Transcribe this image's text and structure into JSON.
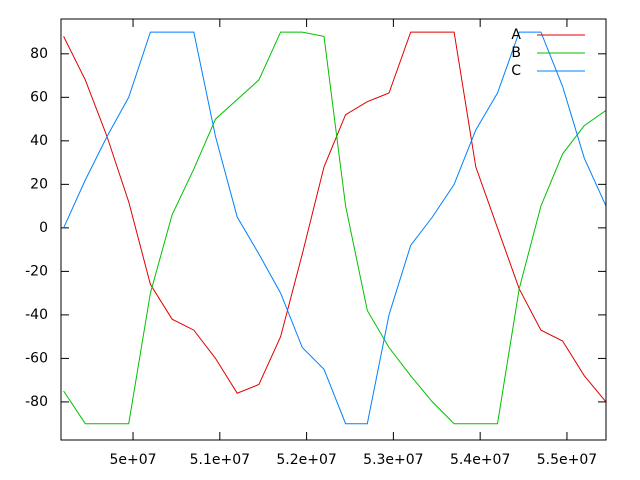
{
  "chart_data": {
    "type": "line",
    "x": [
      49200000,
      49450000,
      49700000,
      49950000,
      50200000,
      50450000,
      50700000,
      50950000,
      51200000,
      51450000,
      51700000,
      51950000,
      52200000,
      52450000,
      52700000,
      52950000,
      53200000,
      53450000,
      53700000,
      53950000,
      54200000,
      54450000,
      54700000,
      54950000,
      55200000,
      55450000
    ],
    "series": [
      {
        "name": "A",
        "color": "#e00000",
        "values": [
          88,
          68,
          42,
          12,
          -26,
          -42,
          -47,
          -60,
          -76,
          -72,
          -50,
          -12,
          28,
          52,
          58,
          62,
          90,
          90,
          90,
          28,
          0,
          -28,
          -47,
          -52,
          -68,
          -80
        ]
      },
      {
        "name": "B",
        "color": "#00c000",
        "values": [
          -75,
          -90,
          -90,
          -90,
          -30,
          6,
          27,
          50,
          59,
          68,
          90,
          90,
          88,
          10,
          -38,
          -55,
          -68,
          -80,
          -90,
          -90,
          -90,
          -28,
          10,
          34,
          47,
          54
        ]
      },
      {
        "name": "C",
        "color": "#0080ff",
        "values": [
          0,
          22,
          42,
          60,
          90,
          90,
          90,
          42,
          5,
          -12,
          -30,
          -55,
          -65,
          -90,
          -90,
          -40,
          -8,
          5,
          20,
          45,
          62,
          90,
          90,
          65,
          32,
          10
        ]
      }
    ],
    "xlim": [
      49170000,
      55450000
    ],
    "xticks": [
      {
        "value": 50000000,
        "label": "5e+07"
      },
      {
        "value": 51000000,
        "label": "5.1e+07"
      },
      {
        "value": 52000000,
        "label": "5.2e+07"
      },
      {
        "value": 53000000,
        "label": "5.3e+07"
      },
      {
        "value": 54000000,
        "label": "5.4e+07"
      },
      {
        "value": 55000000,
        "label": "5.5e+07"
      }
    ],
    "ylim": [
      -97.5,
      96
    ],
    "yticks": [
      -80,
      -60,
      -40,
      -20,
      0,
      20,
      40,
      60,
      80
    ],
    "legend": "top-right"
  }
}
